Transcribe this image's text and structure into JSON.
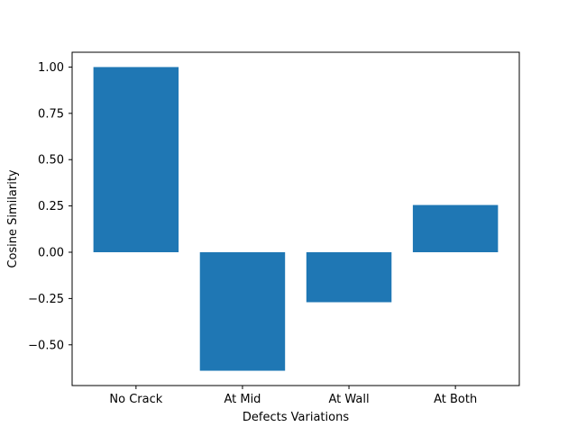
{
  "chart_data": {
    "type": "bar",
    "title": "",
    "xlabel": "Defects Variations",
    "ylabel": "Cosine Similarity",
    "categories": [
      "No Crack",
      "At Mid",
      "At Wall",
      "At Both"
    ],
    "values": [
      1.0,
      -0.64,
      -0.27,
      0.255
    ],
    "ylim": [
      -0.72,
      1.08
    ],
    "yticks": [
      -0.5,
      -0.25,
      0.0,
      0.25,
      0.5,
      0.75,
      1.0
    ],
    "ytick_labels": [
      "−0.50",
      "−0.25",
      "0.00",
      "0.25",
      "0.50",
      "0.75",
      "1.00"
    ],
    "bar_color": "#1f77b4",
    "grid": false,
    "legend": "none"
  }
}
